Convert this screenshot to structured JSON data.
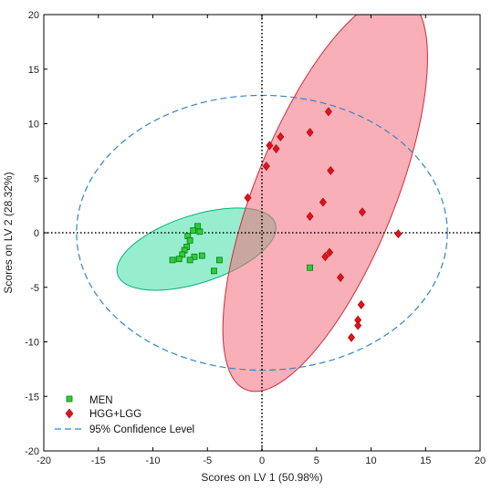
{
  "chart_data": {
    "type": "scatter",
    "xlabel": "Scores on LV 1 (50.98%)",
    "ylabel": "Scores on LV 2 (28.32%)",
    "xlim": [
      -20,
      20
    ],
    "ylim": [
      -20,
      20
    ],
    "xticks": [
      -20,
      -15,
      -10,
      -5,
      0,
      5,
      10,
      15,
      20
    ],
    "yticks": [
      -20,
      -15,
      -10,
      -5,
      0,
      5,
      10,
      15,
      20
    ],
    "grid": false,
    "legend_position": "bottom-left",
    "series": [
      {
        "name": "MEN",
        "marker": "square",
        "color": "#2ecc40",
        "edge_color": "#0a7a0a",
        "points": [
          [
            -5.9,
            0.6
          ],
          [
            -5.7,
            0.1
          ],
          [
            -6.3,
            0.2
          ],
          [
            -6.8,
            -0.3
          ],
          [
            -6.6,
            -0.7
          ],
          [
            -6.9,
            -1.3
          ],
          [
            -7.1,
            -1.6
          ],
          [
            -7.3,
            -2.0
          ],
          [
            -6.2,
            -2.2
          ],
          [
            -5.5,
            -2.1
          ],
          [
            -7.6,
            -2.4
          ],
          [
            -8.2,
            -2.5
          ],
          [
            -6.6,
            -2.5
          ],
          [
            -3.9,
            -2.5
          ],
          [
            -4.4,
            -3.5
          ],
          [
            4.4,
            -3.2
          ]
        ]
      },
      {
        "name": "HGG+LGG",
        "marker": "diamond",
        "color": "#e0141e",
        "edge_color": "#a00000",
        "points": [
          [
            6.1,
            11.1
          ],
          [
            4.4,
            9.2
          ],
          [
            1.7,
            8.8
          ],
          [
            0.7,
            8.0
          ],
          [
            1.3,
            7.7
          ],
          [
            6.3,
            5.7
          ],
          [
            0.4,
            6.1
          ],
          [
            -1.3,
            3.2
          ],
          [
            5.6,
            2.8
          ],
          [
            9.2,
            1.9
          ],
          [
            4.4,
            1.5
          ],
          [
            12.5,
            -0.1
          ],
          [
            6.2,
            -1.8
          ],
          [
            5.8,
            -2.2
          ],
          [
            7.2,
            -4.1
          ],
          [
            9.1,
            -6.6
          ],
          [
            8.8,
            -8.0
          ],
          [
            8.8,
            -8.5
          ],
          [
            8.2,
            -9.6
          ]
        ]
      }
    ],
    "confidence_ellipses": [
      {
        "series": "MEN",
        "center": [
          -6.0,
          -1.5
        ],
        "radii": [
          7.6,
          3.1
        ],
        "angle_deg": -18,
        "fill": "#3fe0a8",
        "stroke": "#00b37a"
      },
      {
        "series": "HGG+LGG",
        "center": [
          5.8,
          3.6
        ],
        "radii": [
          19.4,
          6.4
        ],
        "angle_deg": -68,
        "fill": "#f46d7c",
        "stroke": "#d02a3a"
      }
    ],
    "confidence_level": {
      "name": "95% Confidence Level",
      "center": [
        0,
        0
      ],
      "radii": [
        17.0,
        12.6
      ],
      "color": "#2f86c8"
    },
    "reference_lines": {
      "x": 0,
      "y": 0
    }
  }
}
